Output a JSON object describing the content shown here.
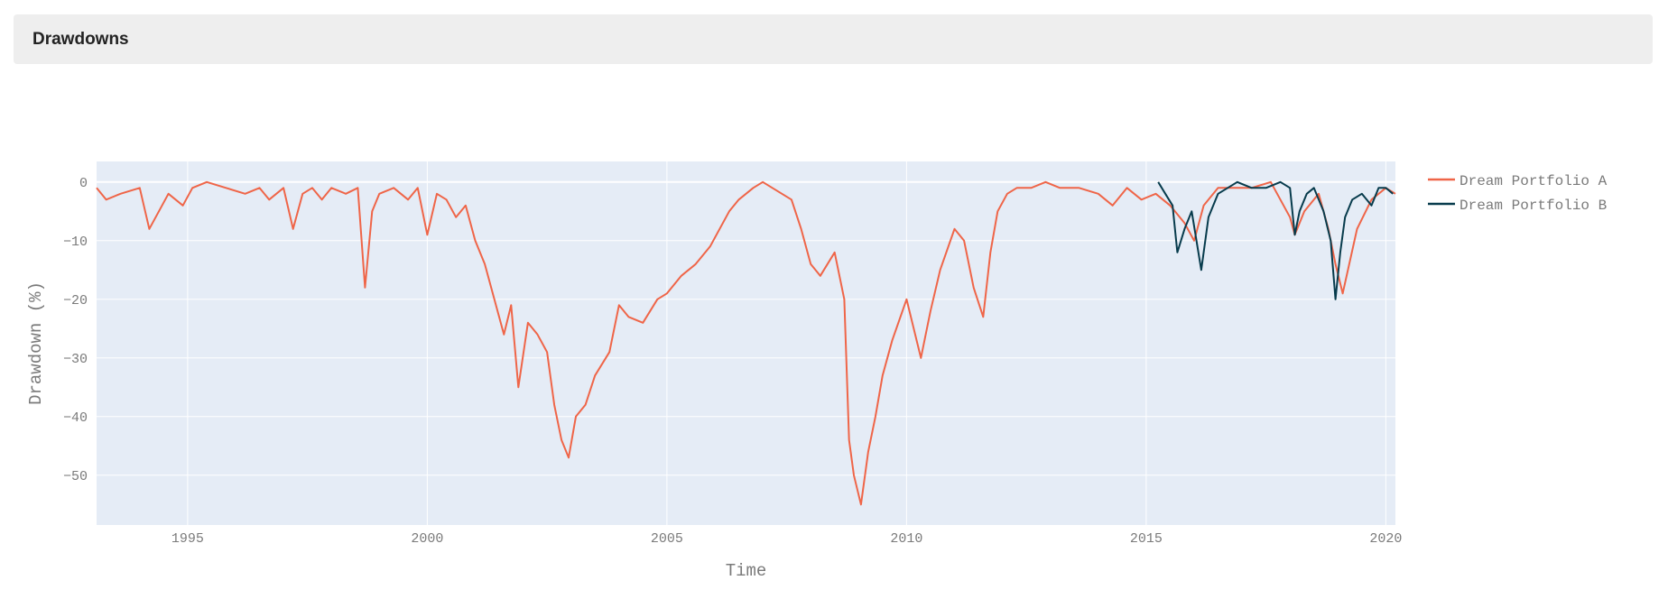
{
  "panel": {
    "title": "Drawdowns"
  },
  "chart_data": {
    "type": "line",
    "title": "",
    "xlabel": "Time",
    "ylabel": "Drawdown (%)",
    "xlim": [
      1993.1,
      2020.2
    ],
    "ylim": [
      -58.5,
      3.5
    ],
    "xticks": [
      1995,
      2000,
      2005,
      2010,
      2015,
      2020
    ],
    "yticks": [
      0,
      -10,
      -20,
      -30,
      -40,
      -50
    ],
    "grid": true,
    "legend_position": "top-right, outside plot",
    "colors": {
      "plot_background": "#e5ecf6",
      "grid": "#ffffff"
    },
    "series": [
      {
        "name": "Dream Portfolio A",
        "color": "#ef6548",
        "x": [
          1993.1,
          1993.3,
          1993.6,
          1994.0,
          1994.2,
          1994.4,
          1994.6,
          1994.9,
          1995.1,
          1995.4,
          1995.8,
          1996.2,
          1996.5,
          1996.7,
          1997.0,
          1997.2,
          1997.4,
          1997.6,
          1997.8,
          1998.0,
          1998.3,
          1998.55,
          1998.7,
          1998.85,
          1999.0,
          1999.3,
          1999.6,
          1999.8,
          2000.0,
          2000.2,
          2000.4,
          2000.6,
          2000.8,
          2001.0,
          2001.2,
          2001.4,
          2001.6,
          2001.75,
          2001.9,
          2002.1,
          2002.3,
          2002.5,
          2002.65,
          2002.8,
          2002.95,
          2003.1,
          2003.3,
          2003.5,
          2003.8,
          2004.0,
          2004.2,
          2004.5,
          2004.8,
          2005.0,
          2005.3,
          2005.6,
          2005.9,
          2006.1,
          2006.3,
          2006.5,
          2006.8,
          2007.0,
          2007.2,
          2007.4,
          2007.6,
          2007.8,
          2008.0,
          2008.2,
          2008.5,
          2008.7,
          2008.8,
          2008.9,
          2009.05,
          2009.2,
          2009.35,
          2009.5,
          2009.7,
          2010.0,
          2010.3,
          2010.5,
          2010.7,
          2011.0,
          2011.2,
          2011.4,
          2011.6,
          2011.75,
          2011.9,
          2012.1,
          2012.3,
          2012.6,
          2012.9,
          2013.2,
          2013.6,
          2014.0,
          2014.3,
          2014.6,
          2014.9,
          2015.2,
          2015.5,
          2015.8,
          2016.0,
          2016.2,
          2016.5,
          2016.9,
          2017.2,
          2017.6,
          2018.0,
          2018.1,
          2018.3,
          2018.6,
          2018.8,
          2018.95,
          2019.1,
          2019.4,
          2019.7,
          2020.0,
          2020.2
        ],
        "y": [
          -1,
          -3,
          -2,
          -1,
          -8,
          -5,
          -2,
          -4,
          -1,
          0,
          -1,
          -2,
          -1,
          -3,
          -1,
          -8,
          -2,
          -1,
          -3,
          -1,
          -2,
          -1,
          -18,
          -5,
          -2,
          -1,
          -3,
          -1,
          -9,
          -2,
          -3,
          -6,
          -4,
          -10,
          -14,
          -20,
          -26,
          -21,
          -35,
          -24,
          -26,
          -29,
          -38,
          -44,
          -47,
          -40,
          -38,
          -33,
          -29,
          -21,
          -23,
          -24,
          -20,
          -19,
          -16,
          -14,
          -11,
          -8,
          -5,
          -3,
          -1,
          0,
          -1,
          -2,
          -3,
          -8,
          -14,
          -16,
          -12,
          -20,
          -44,
          -50,
          -55,
          -46,
          -40,
          -33,
          -27,
          -20,
          -30,
          -22,
          -15,
          -8,
          -10,
          -18,
          -23,
          -12,
          -5,
          -2,
          -1,
          -1,
          0,
          -1,
          -1,
          -2,
          -4,
          -1,
          -3,
          -2,
          -4,
          -7,
          -10,
          -4,
          -1,
          -1,
          -1,
          0,
          -6,
          -9,
          -5,
          -2,
          -8,
          -14,
          -19,
          -8,
          -3,
          -1,
          -2
        ]
      },
      {
        "name": "Dream Portfolio B",
        "color": "#073b4c",
        "x": [
          2015.25,
          2015.4,
          2015.55,
          2015.65,
          2015.8,
          2015.95,
          2016.05,
          2016.15,
          2016.3,
          2016.5,
          2016.7,
          2016.9,
          2017.2,
          2017.5,
          2017.8,
          2018.0,
          2018.1,
          2018.2,
          2018.35,
          2018.5,
          2018.7,
          2018.85,
          2018.95,
          2019.05,
          2019.15,
          2019.3,
          2019.5,
          2019.7,
          2019.85,
          2020.0,
          2020.15
        ],
        "y": [
          0,
          -2,
          -4,
          -12,
          -8,
          -5,
          -10,
          -15,
          -6,
          -2,
          -1,
          0,
          -1,
          -1,
          0,
          -1,
          -9,
          -5,
          -2,
          -1,
          -5,
          -10,
          -20,
          -12,
          -6,
          -3,
          -2,
          -4,
          -1,
          -1,
          -2
        ]
      }
    ]
  }
}
